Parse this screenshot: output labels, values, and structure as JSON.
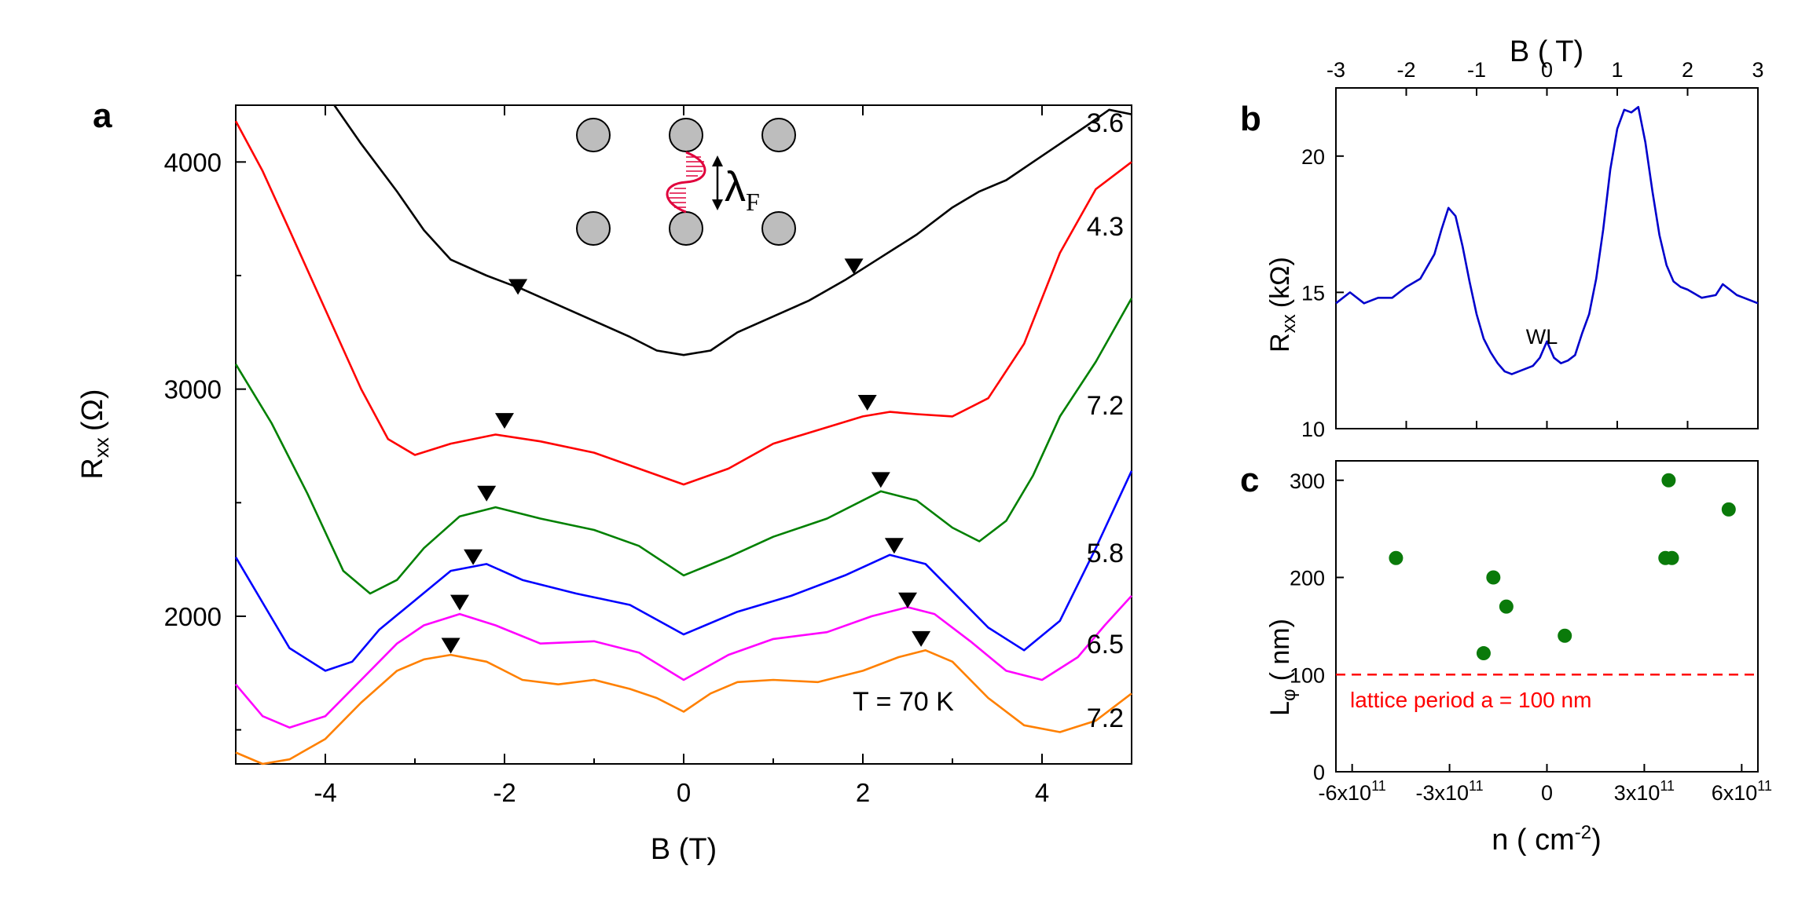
{
  "figure": {
    "panel_labels": [
      "a",
      "b",
      "c"
    ]
  },
  "chart_data": [
    {
      "panel": "a",
      "type": "line",
      "xlabel": "B (T)",
      "ylabel": "R",
      "ylabel_sub": "xx",
      "ylabel_unit": "(Ω)",
      "xlim": [
        -5,
        5
      ],
      "ylim": [
        1350,
        4250
      ],
      "xticks": [
        -4,
        -2,
        0,
        2,
        4
      ],
      "xtick_labels": [
        "-4",
        "-2",
        "0",
        "2",
        "4"
      ],
      "yticks": [
        2000,
        3000,
        4000
      ],
      "ytick_labels": [
        "2000",
        "3000",
        "4000"
      ],
      "annotation": "T = 70 K",
      "inset_label": "λ",
      "inset_label_sub": "F",
      "series": [
        {
          "name": "3.6",
          "color": "#000000",
          "x": [
            -3.9,
            -3.6,
            -3.2,
            -2.9,
            -2.6,
            -2.2,
            -1.8,
            -1.4,
            -1.0,
            -0.6,
            -0.3,
            0,
            0.3,
            0.6,
            1.0,
            1.4,
            1.8,
            2.2,
            2.6,
            3.0,
            3.3,
            3.6,
            3.9,
            4.2,
            4.5,
            4.75,
            5.0
          ],
          "y": [
            4250,
            4080,
            3870,
            3700,
            3570,
            3500,
            3440,
            3370,
            3300,
            3230,
            3170,
            3150,
            3170,
            3250,
            3320,
            3390,
            3480,
            3580,
            3680,
            3800,
            3870,
            3920,
            4000,
            4080,
            4160,
            4230,
            4210
          ]
        },
        {
          "name": "4.3",
          "color": "#ff0000",
          "x": [
            -5.0,
            -4.7,
            -4.4,
            -4.0,
            -3.6,
            -3.3,
            -3.0,
            -2.6,
            -2.1,
            -1.6,
            -1.0,
            -0.5,
            0,
            0.5,
            1.0,
            1.5,
            2.0,
            2.3,
            2.6,
            3.0,
            3.4,
            3.8,
            4.2,
            4.6,
            5.0
          ],
          "y": [
            4180,
            3960,
            3700,
            3350,
            3000,
            2780,
            2710,
            2760,
            2800,
            2770,
            2720,
            2650,
            2580,
            2650,
            2760,
            2820,
            2880,
            2900,
            2890,
            2880,
            2960,
            3200,
            3600,
            3880,
            4000
          ]
        },
        {
          "name": "7.2",
          "color": "#008000",
          "x": [
            -5.0,
            -4.6,
            -4.2,
            -3.8,
            -3.5,
            -3.2,
            -2.9,
            -2.5,
            -2.1,
            -1.6,
            -1.0,
            -0.5,
            0,
            0.5,
            1.0,
            1.6,
            2.2,
            2.6,
            3.0,
            3.3,
            3.6,
            3.9,
            4.2,
            4.6,
            5.0
          ],
          "y": [
            3110,
            2850,
            2540,
            2200,
            2100,
            2160,
            2300,
            2440,
            2480,
            2430,
            2380,
            2310,
            2180,
            2260,
            2350,
            2430,
            2550,
            2510,
            2390,
            2330,
            2420,
            2620,
            2880,
            3120,
            3400
          ]
        },
        {
          "name": "5.8",
          "color": "#0000ff",
          "x": [
            -5.0,
            -4.7,
            -4.4,
            -4.0,
            -3.7,
            -3.4,
            -3.0,
            -2.6,
            -2.2,
            -1.8,
            -1.2,
            -0.6,
            0,
            0.6,
            1.2,
            1.8,
            2.3,
            2.7,
            3.0,
            3.4,
            3.8,
            4.2,
            4.6,
            5.0
          ],
          "y": [
            2260,
            2060,
            1860,
            1760,
            1800,
            1940,
            2070,
            2200,
            2230,
            2160,
            2100,
            2050,
            1920,
            2020,
            2090,
            2180,
            2270,
            2230,
            2110,
            1950,
            1850,
            1980,
            2300,
            2640
          ]
        },
        {
          "name": "6.5",
          "color": "#ff00ff",
          "x": [
            -5.0,
            -4.7,
            -4.4,
            -4.0,
            -3.6,
            -3.2,
            -2.9,
            -2.5,
            -2.1,
            -1.6,
            -1.0,
            -0.5,
            0,
            0.5,
            1.0,
            1.6,
            2.1,
            2.5,
            2.8,
            3.2,
            3.6,
            4.0,
            4.4,
            4.7,
            5.0
          ],
          "y": [
            1700,
            1560,
            1510,
            1560,
            1720,
            1880,
            1960,
            2010,
            1960,
            1880,
            1890,
            1840,
            1720,
            1830,
            1900,
            1930,
            2000,
            2040,
            2010,
            1890,
            1760,
            1720,
            1820,
            1960,
            2090
          ]
        },
        {
          "name": "7.2",
          "color": "#ff8000",
          "x": [
            -5.0,
            -4.7,
            -4.4,
            -4.0,
            -3.6,
            -3.2,
            -2.9,
            -2.6,
            -2.2,
            -1.8,
            -1.4,
            -1.0,
            -0.6,
            -0.3,
            0,
            0.3,
            0.6,
            1.0,
            1.5,
            2.0,
            2.4,
            2.7,
            3.0,
            3.4,
            3.8,
            4.2,
            4.6,
            5.0
          ],
          "y": [
            1400,
            1350,
            1370,
            1460,
            1620,
            1760,
            1810,
            1830,
            1800,
            1720,
            1700,
            1720,
            1680,
            1640,
            1580,
            1660,
            1710,
            1720,
            1710,
            1760,
            1820,
            1850,
            1800,
            1640,
            1520,
            1490,
            1540,
            1660
          ]
        }
      ],
      "markers": [
        {
          "x": -1.85,
          "y": 3450
        },
        {
          "x": 1.9,
          "y": 3540
        },
        {
          "x": -2.0,
          "y": 2860
        },
        {
          "x": 2.05,
          "y": 2940
        },
        {
          "x": -2.2,
          "y": 2540
        },
        {
          "x": 2.2,
          "y": 2600
        },
        {
          "x": -2.35,
          "y": 2260
        },
        {
          "x": 2.35,
          "y": 2310
        },
        {
          "x": -2.5,
          "y": 2060
        },
        {
          "x": 2.5,
          "y": 2070
        },
        {
          "x": -2.6,
          "y": 1870
        },
        {
          "x": 2.65,
          "y": 1900
        }
      ]
    },
    {
      "panel": "b",
      "type": "line",
      "xlabel": "B  ( T)",
      "ylabel": "R",
      "ylabel_sub": "xx",
      "ylabel_unit": "(kΩ)",
      "xlim": [
        -3,
        3
      ],
      "ylim": [
        10,
        22.5
      ],
      "xticks": [
        -3,
        -2,
        -1,
        0,
        1,
        2,
        3
      ],
      "xtick_labels": [
        "-3",
        "-2",
        "-1",
        "0",
        "1",
        "2",
        "3"
      ],
      "yticks": [
        10,
        15,
        20
      ],
      "ytick_labels": [
        "10",
        "15",
        "20"
      ],
      "annotation": "WL",
      "series": [
        {
          "name": "Rxx",
          "color": "#0000cc",
          "x": [
            -3.0,
            -2.8,
            -2.6,
            -2.4,
            -2.2,
            -2.0,
            -1.8,
            -1.6,
            -1.5,
            -1.4,
            -1.3,
            -1.2,
            -1.1,
            -1.0,
            -0.9,
            -0.8,
            -0.7,
            -0.6,
            -0.5,
            -0.4,
            -0.3,
            -0.2,
            -0.1,
            0.0,
            0.1,
            0.2,
            0.3,
            0.4,
            0.5,
            0.6,
            0.7,
            0.8,
            0.9,
            1.0,
            1.1,
            1.2,
            1.3,
            1.4,
            1.5,
            1.6,
            1.7,
            1.8,
            1.9,
            2.0,
            2.2,
            2.4,
            2.5,
            2.6,
            2.7,
            2.8,
            3.0
          ],
          "y": [
            14.6,
            15.0,
            14.6,
            14.8,
            14.8,
            15.2,
            15.5,
            16.4,
            17.3,
            18.1,
            17.8,
            16.7,
            15.4,
            14.2,
            13.3,
            12.8,
            12.4,
            12.1,
            12.0,
            12.1,
            12.2,
            12.3,
            12.6,
            13.2,
            12.6,
            12.4,
            12.5,
            12.7,
            13.5,
            14.2,
            15.5,
            17.3,
            19.5,
            21.0,
            21.7,
            21.6,
            21.8,
            20.5,
            18.7,
            17.1,
            16.0,
            15.4,
            15.2,
            15.1,
            14.8,
            14.9,
            15.3,
            15.1,
            14.9,
            14.8,
            14.6
          ]
        }
      ]
    },
    {
      "panel": "c",
      "type": "scatter",
      "xlabel": "n  ( cm",
      "xlabel_sup": "-2",
      "xlabel_close": ")",
      "ylabel": "L",
      "ylabel_sub": "φ",
      "ylabel_unit": "( nm)",
      "xlim": [
        -650000000000.0,
        650000000000.0
      ],
      "ylim": [
        0,
        320
      ],
      "xticks": [
        -600000000000.0,
        -300000000000.0,
        0,
        300000000000.0,
        600000000000.0
      ],
      "xtick_labels": [
        "-6x10",
        "-3x10",
        "0",
        "3x10",
        "6x10"
      ],
      "xtick_exponent": "11",
      "yticks": [
        0,
        100,
        200,
        300
      ],
      "ytick_labels": [
        "0",
        "100",
        "200",
        "300"
      ],
      "reference_line": {
        "y": 100,
        "label": "lattice period a = 100 nm",
        "color": "#ff0000"
      },
      "marker_color": "#0a7a0a",
      "points": [
        {
          "x": -465000000000.0,
          "y": 220
        },
        {
          "x": -195000000000.0,
          "y": 122
        },
        {
          "x": -165000000000.0,
          "y": 200
        },
        {
          "x": -125000000000.0,
          "y": 170
        },
        {
          "x": 55000000000.0,
          "y": 140
        },
        {
          "x": 365000000000.0,
          "y": 220
        },
        {
          "x": 375000000000.0,
          "y": 300
        },
        {
          "x": 385000000000.0,
          "y": 220
        },
        {
          "x": 560000000000.0,
          "y": 270
        }
      ]
    }
  ]
}
